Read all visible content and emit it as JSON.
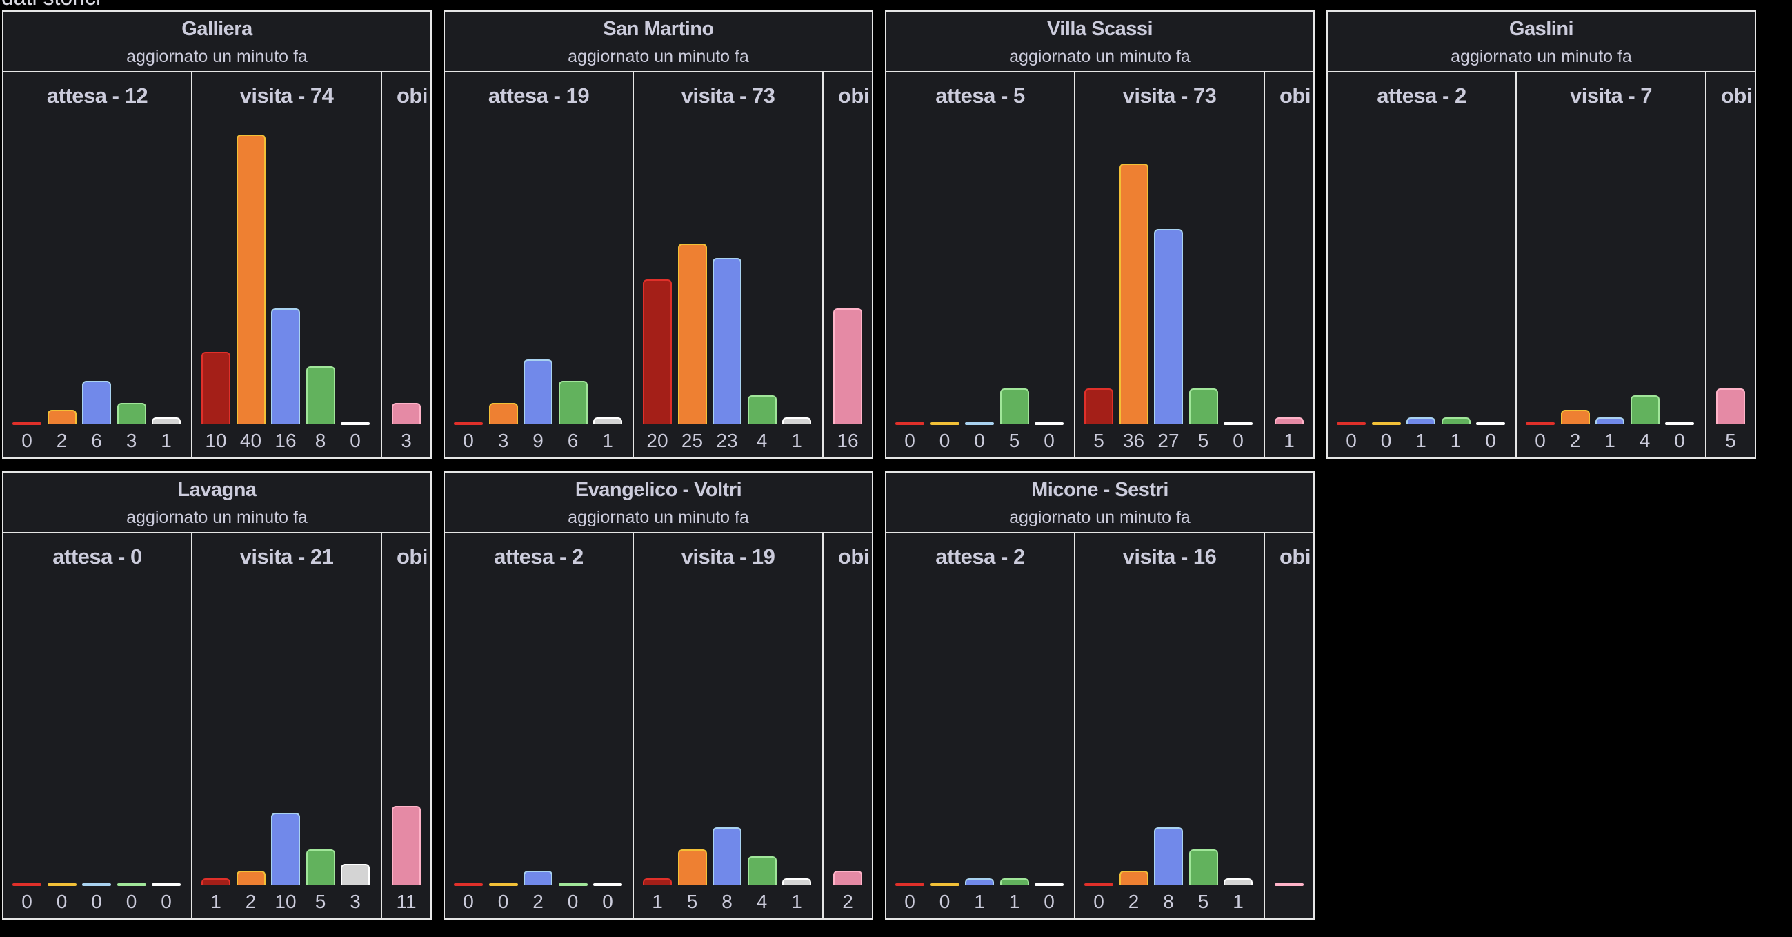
{
  "page": {
    "title": "dati storici"
  },
  "common": {
    "subtitle": "aggiornato un minuto fa",
    "section_labels": {
      "attesa": "attesa",
      "visita": "visita",
      "obi": "obi"
    }
  },
  "series_colors": [
    {
      "name": "rosso",
      "fill": "#A41F18",
      "stroke": "#E0302A"
    },
    {
      "name": "arancione",
      "fill": "#EE8032",
      "stroke": "#F2C037"
    },
    {
      "name": "azzurro",
      "fill": "#7189EA",
      "stroke": "#A9D2F0"
    },
    {
      "name": "verde",
      "fill": "#62B25D",
      "stroke": "#A1E69A"
    },
    {
      "name": "bianco",
      "fill": "#D4D4D4",
      "stroke": "#FFFFFF"
    }
  ],
  "obi_color": {
    "fill": "#E58AA5",
    "stroke": "#FFB3C8"
  },
  "chart_data": {
    "type": "bar",
    "title": "dati storici",
    "ylim": [
      0,
      42
    ],
    "panels": [
      {
        "name": "Galliera",
        "subtitle": "aggiornato un minuto fa",
        "attesa": {
          "title": "attesa - 12",
          "values": [
            0,
            2,
            6,
            3,
            1
          ]
        },
        "visita": {
          "title": "visita - 74",
          "values": [
            10,
            40,
            16,
            8,
            0
          ]
        },
        "obi": {
          "title": "obi",
          "values": [
            3
          ],
          "labels": [
            "3"
          ]
        }
      },
      {
        "name": "San Martino",
        "subtitle": "aggiornato un minuto fa",
        "attesa": {
          "title": "attesa - 19",
          "values": [
            0,
            3,
            9,
            6,
            1
          ]
        },
        "visita": {
          "title": "visita - 73",
          "values": [
            20,
            25,
            23,
            4,
            1
          ]
        },
        "obi": {
          "title": "obi",
          "values": [
            16
          ],
          "labels": [
            "16"
          ]
        }
      },
      {
        "name": "Villa Scassi",
        "subtitle": "aggiornato un minuto fa",
        "attesa": {
          "title": "attesa - 5",
          "values": [
            0,
            0,
            0,
            5,
            0
          ]
        },
        "visita": {
          "title": "visita - 73",
          "values": [
            5,
            36,
            27,
            5,
            0
          ]
        },
        "obi": {
          "title": "obi",
          "values": [
            1
          ],
          "labels": [
            "1"
          ]
        }
      },
      {
        "name": "Gaslini",
        "subtitle": "aggiornato un minuto fa",
        "attesa": {
          "title": "attesa - 2",
          "values": [
            0,
            0,
            1,
            1,
            0
          ]
        },
        "visita": {
          "title": "visita - 7",
          "values": [
            0,
            2,
            1,
            4,
            0
          ]
        },
        "obi": {
          "title": "obi",
          "values": [
            5
          ],
          "labels": [
            "5"
          ]
        }
      },
      {
        "name": "Lavagna",
        "subtitle": "aggiornato un minuto fa",
        "attesa": {
          "title": "attesa - 0",
          "values": [
            0,
            0,
            0,
            0,
            0
          ]
        },
        "visita": {
          "title": "visita - 21",
          "values": [
            1,
            2,
            10,
            5,
            3
          ]
        },
        "obi": {
          "title": "obi",
          "values": [
            11
          ],
          "labels": [
            "11"
          ]
        }
      },
      {
        "name": "Evangelico - Voltri",
        "subtitle": "aggiornato un minuto fa",
        "attesa": {
          "title": "attesa - 2",
          "values": [
            0,
            0,
            2,
            0,
            0
          ]
        },
        "visita": {
          "title": "visita - 19",
          "values": [
            1,
            5,
            8,
            4,
            1
          ]
        },
        "obi": {
          "title": "obi",
          "values": [
            2
          ],
          "labels": [
            "2"
          ]
        }
      },
      {
        "name": "Micone - Sestri",
        "subtitle": "aggiornato un minuto fa",
        "attesa": {
          "title": "attesa - 2",
          "values": [
            0,
            0,
            1,
            1,
            0
          ]
        },
        "visita": {
          "title": "visita - 16",
          "values": [
            0,
            2,
            8,
            5,
            1
          ]
        },
        "obi": {
          "title": "obi",
          "values": [
            0
          ],
          "labels": [
            ""
          ]
        }
      }
    ]
  }
}
